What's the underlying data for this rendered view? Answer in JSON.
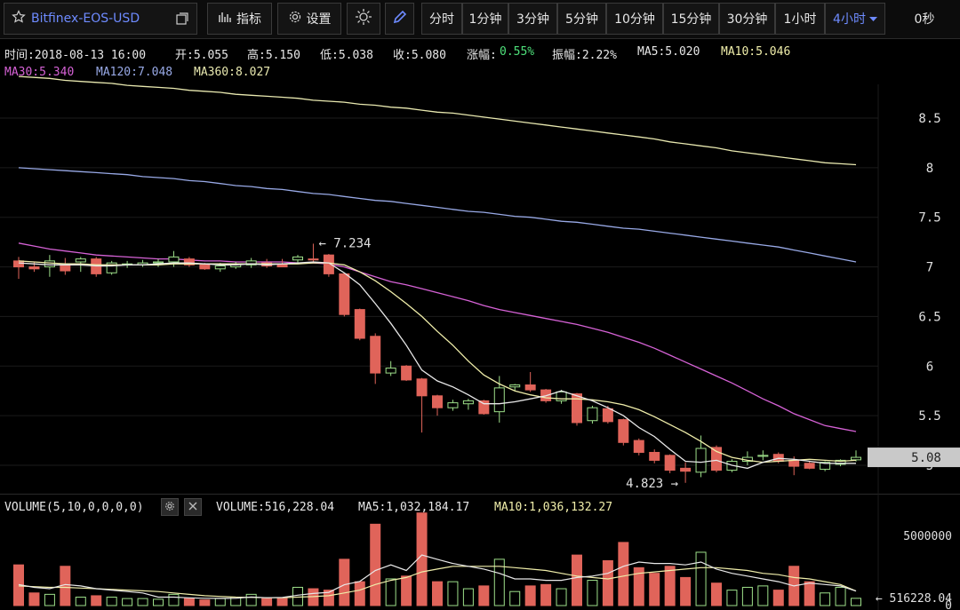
{
  "toolbar": {
    "symbol": "Bitfinex-EOS-USD",
    "indicators_label": "指标",
    "settings_label": "设置",
    "intervals": [
      "分时",
      "1分钟",
      "3分钟",
      "5分钟",
      "10分钟",
      "15分钟",
      "30分钟",
      "1小时",
      "4小时"
    ],
    "active_interval": "4小时",
    "countdown": "0秒"
  },
  "info": {
    "time": "时间:2018-08-13 16:00",
    "open": "开:5.055",
    "high": "高:5.150",
    "low": "低:5.038",
    "close": "收:5.080",
    "change_label": "涨幅:",
    "change_value": "0.55%",
    "amplitude": "振幅:2.22%",
    "ma5": "MA5:5.020",
    "ma10": "MA10:5.046",
    "ma30": "MA30:5.340",
    "ma120": "MA120:7.048",
    "ma360": "MA360:8.027"
  },
  "volume_info": {
    "title": "VOLUME(5,10,0,0,0,0)",
    "volume": "VOLUME:516,228.04",
    "ma5": "MA5:1,032,184.17",
    "ma10": "MA10:1,036,132.27"
  },
  "colors": {
    "up": "#9ee08a",
    "down": "#e0645a",
    "ma5": "#e8e8e8",
    "ma10": "#f0eeaa",
    "ma30": "#d662d6",
    "ma120": "#98a9e6",
    "ma360": "#e9e9b0",
    "accent": "#6e8bff",
    "change_up": "#4ee07a"
  },
  "chart_data": {
    "type": "candlestick",
    "price_axis_ticks": [
      "8.5",
      "8",
      "7.5",
      "7",
      "6.5",
      "6",
      "5.5",
      "5"
    ],
    "current_price_label": "5.08",
    "high_annotation": "7.234",
    "low_annotation": "4.823",
    "ylim": [
      4.95,
      8.85
    ],
    "candles": [
      {
        "o": 7.06,
        "h": 7.1,
        "l": 6.88,
        "c": 7.0
      },
      {
        "o": 7.0,
        "h": 7.05,
        "l": 6.95,
        "c": 6.98
      },
      {
        "o": 7.0,
        "h": 7.12,
        "l": 6.9,
        "c": 7.06
      },
      {
        "o": 7.02,
        "h": 7.09,
        "l": 6.92,
        "c": 6.96
      },
      {
        "o": 7.05,
        "h": 7.1,
        "l": 6.95,
        "c": 7.08
      },
      {
        "o": 7.08,
        "h": 7.1,
        "l": 6.9,
        "c": 6.93
      },
      {
        "o": 6.94,
        "h": 7.06,
        "l": 6.92,
        "c": 7.04
      },
      {
        "o": 7.02,
        "h": 7.06,
        "l": 6.99,
        "c": 7.03
      },
      {
        "o": 7.02,
        "h": 7.07,
        "l": 7.0,
        "c": 7.04
      },
      {
        "o": 7.04,
        "h": 7.08,
        "l": 7.0,
        "c": 7.05
      },
      {
        "o": 7.05,
        "h": 7.16,
        "l": 7.0,
        "c": 7.1
      },
      {
        "o": 7.08,
        "h": 7.1,
        "l": 7.0,
        "c": 7.02
      },
      {
        "o": 7.02,
        "h": 7.04,
        "l": 6.97,
        "c": 6.98
      },
      {
        "o": 6.98,
        "h": 7.04,
        "l": 6.95,
        "c": 7.01
      },
      {
        "o": 7.0,
        "h": 7.05,
        "l": 6.98,
        "c": 7.03
      },
      {
        "o": 7.02,
        "h": 7.09,
        "l": 6.99,
        "c": 7.06
      },
      {
        "o": 7.04,
        "h": 7.08,
        "l": 6.99,
        "c": 7.01
      },
      {
        "o": 7.03,
        "h": 7.08,
        "l": 7.0,
        "c": 7.0
      },
      {
        "o": 7.07,
        "h": 7.12,
        "l": 7.03,
        "c": 7.1
      },
      {
        "o": 7.08,
        "h": 7.234,
        "l": 7.05,
        "c": 7.07
      },
      {
        "o": 7.12,
        "h": 7.13,
        "l": 6.9,
        "c": 6.93
      },
      {
        "o": 6.93,
        "h": 6.94,
        "l": 6.5,
        "c": 6.52
      },
      {
        "o": 6.57,
        "h": 6.58,
        "l": 6.26,
        "c": 6.28
      },
      {
        "o": 6.3,
        "h": 6.33,
        "l": 5.82,
        "c": 5.93
      },
      {
        "o": 5.93,
        "h": 6.05,
        "l": 5.9,
        "c": 5.98
      },
      {
        "o": 6.0,
        "h": 6.01,
        "l": 5.85,
        "c": 5.86
      },
      {
        "o": 5.87,
        "h": 5.88,
        "l": 5.33,
        "c": 5.7
      },
      {
        "o": 5.7,
        "h": 5.71,
        "l": 5.5,
        "c": 5.58
      },
      {
        "o": 5.58,
        "h": 5.66,
        "l": 5.55,
        "c": 5.63
      },
      {
        "o": 5.62,
        "h": 5.67,
        "l": 5.56,
        "c": 5.65
      },
      {
        "o": 5.65,
        "h": 5.66,
        "l": 5.51,
        "c": 5.52
      },
      {
        "o": 5.54,
        "h": 5.9,
        "l": 5.43,
        "c": 5.78
      },
      {
        "o": 5.79,
        "h": 5.82,
        "l": 5.75,
        "c": 5.81
      },
      {
        "o": 5.81,
        "h": 5.94,
        "l": 5.74,
        "c": 5.76
      },
      {
        "o": 5.76,
        "h": 5.77,
        "l": 5.63,
        "c": 5.65
      },
      {
        "o": 5.65,
        "h": 5.76,
        "l": 5.62,
        "c": 5.74
      },
      {
        "o": 5.72,
        "h": 5.73,
        "l": 5.4,
        "c": 5.43
      },
      {
        "o": 5.45,
        "h": 5.6,
        "l": 5.42,
        "c": 5.58
      },
      {
        "o": 5.57,
        "h": 5.6,
        "l": 5.42,
        "c": 5.44
      },
      {
        "o": 5.46,
        "h": 5.47,
        "l": 5.2,
        "c": 5.23
      },
      {
        "o": 5.25,
        "h": 5.27,
        "l": 5.1,
        "c": 5.13
      },
      {
        "o": 5.13,
        "h": 5.16,
        "l": 5.02,
        "c": 5.05
      },
      {
        "o": 5.1,
        "h": 5.11,
        "l": 4.92,
        "c": 4.95
      },
      {
        "o": 4.97,
        "h": 5.03,
        "l": 4.823,
        "c": 4.94
      },
      {
        "o": 4.93,
        "h": 5.3,
        "l": 4.88,
        "c": 5.17
      },
      {
        "o": 5.18,
        "h": 5.2,
        "l": 4.93,
        "c": 4.95
      },
      {
        "o": 4.95,
        "h": 5.06,
        "l": 4.93,
        "c": 5.04
      },
      {
        "o": 5.04,
        "h": 5.14,
        "l": 5.0,
        "c": 5.08
      },
      {
        "o": 5.09,
        "h": 5.15,
        "l": 5.05,
        "c": 5.1
      },
      {
        "o": 5.11,
        "h": 5.13,
        "l": 5.02,
        "c": 5.04
      },
      {
        "o": 5.05,
        "h": 5.09,
        "l": 4.9,
        "c": 4.99
      },
      {
        "o": 5.02,
        "h": 5.04,
        "l": 4.96,
        "c": 4.97
      },
      {
        "o": 4.96,
        "h": 5.04,
        "l": 4.94,
        "c": 5.03
      },
      {
        "o": 5.01,
        "h": 5.06,
        "l": 4.99,
        "c": 5.05
      },
      {
        "o": 5.055,
        "h": 5.15,
        "l": 5.038,
        "c": 5.08
      }
    ],
    "ma5": [
      7.04,
      7.03,
      7.02,
      7.02,
      7.02,
      7.01,
      7.01,
      7.02,
      7.02,
      7.03,
      7.04,
      7.04,
      7.03,
      7.02,
      7.02,
      7.03,
      7.02,
      7.03,
      7.04,
      7.05,
      7.04,
      6.94,
      6.82,
      6.63,
      6.43,
      6.21,
      5.96,
      5.85,
      5.79,
      5.71,
      5.62,
      5.62,
      5.64,
      5.67,
      5.7,
      5.75,
      5.7,
      5.65,
      5.58,
      5.5,
      5.38,
      5.29,
      5.16,
      5.04,
      5.03,
      5.05,
      5.0,
      4.97,
      5.03,
      5.07,
      5.06,
      5.04,
      5.02,
      5.02,
      5.02
    ],
    "ma10": [
      7.06,
      7.05,
      7.04,
      7.03,
      7.03,
      7.02,
      7.02,
      7.02,
      7.02,
      7.02,
      7.03,
      7.03,
      7.03,
      7.03,
      7.03,
      7.03,
      7.03,
      7.03,
      7.03,
      7.04,
      7.04,
      7.02,
      6.95,
      6.86,
      6.75,
      6.63,
      6.5,
      6.35,
      6.21,
      6.05,
      5.91,
      5.82,
      5.75,
      5.71,
      5.68,
      5.67,
      5.67,
      5.66,
      5.64,
      5.61,
      5.56,
      5.49,
      5.41,
      5.33,
      5.24,
      5.14,
      5.08,
      5.05,
      5.03,
      5.04,
      5.05,
      5.06,
      5.05,
      5.04,
      5.05
    ],
    "ma30": [
      7.24,
      7.21,
      7.18,
      7.16,
      7.14,
      7.12,
      7.11,
      7.1,
      7.09,
      7.08,
      7.08,
      7.07,
      7.06,
      7.06,
      7.05,
      7.05,
      7.05,
      7.05,
      7.04,
      7.04,
      7.03,
      7.0,
      6.95,
      6.9,
      6.85,
      6.82,
      6.78,
      6.74,
      6.7,
      6.66,
      6.61,
      6.57,
      6.54,
      6.51,
      6.48,
      6.45,
      6.42,
      6.38,
      6.34,
      6.29,
      6.24,
      6.18,
      6.11,
      6.04,
      5.97,
      5.9,
      5.83,
      5.75,
      5.67,
      5.6,
      5.52,
      5.46,
      5.4,
      5.37,
      5.34
    ],
    "ma120": [
      8.0,
      7.99,
      7.98,
      7.97,
      7.96,
      7.95,
      7.94,
      7.93,
      7.91,
      7.9,
      7.89,
      7.87,
      7.86,
      7.84,
      7.82,
      7.81,
      7.79,
      7.78,
      7.76,
      7.74,
      7.73,
      7.71,
      7.69,
      7.67,
      7.66,
      7.64,
      7.62,
      7.6,
      7.58,
      7.56,
      7.55,
      7.53,
      7.51,
      7.5,
      7.48,
      7.46,
      7.45,
      7.43,
      7.41,
      7.39,
      7.38,
      7.36,
      7.34,
      7.32,
      7.3,
      7.28,
      7.26,
      7.24,
      7.22,
      7.2,
      7.17,
      7.14,
      7.11,
      7.08,
      7.05
    ],
    "ma360": [
      8.92,
      8.91,
      8.9,
      8.88,
      8.87,
      8.86,
      8.85,
      8.83,
      8.82,
      8.81,
      8.8,
      8.78,
      8.77,
      8.76,
      8.74,
      8.73,
      8.72,
      8.71,
      8.7,
      8.68,
      8.67,
      8.66,
      8.64,
      8.63,
      8.61,
      8.6,
      8.58,
      8.56,
      8.55,
      8.53,
      8.51,
      8.49,
      8.47,
      8.45,
      8.43,
      8.41,
      8.39,
      8.37,
      8.35,
      8.33,
      8.31,
      8.29,
      8.26,
      8.24,
      8.22,
      8.2,
      8.17,
      8.15,
      8.13,
      8.11,
      8.09,
      8.07,
      8.05,
      8.04,
      8.03
    ],
    "volume_axis_ticks": [
      "5000000",
      "0"
    ],
    "volume_current_label": "516228.04",
    "volume_ylim": [
      0,
      6500000
    ],
    "volumes": [
      2900000,
      900000,
      800000,
      2800000,
      600000,
      700000,
      600000,
      500000,
      500000,
      450000,
      800000,
      500000,
      400000,
      500000,
      600000,
      800000,
      500000,
      500000,
      1300000,
      1200000,
      1100000,
      3300000,
      1700000,
      5800000,
      1900000,
      2100000,
      6600000,
      1700000,
      1700000,
      1200000,
      1400000,
      3300000,
      1000000,
      1400000,
      1500000,
      1200000,
      3600000,
      1800000,
      3200000,
      4500000,
      2700000,
      2300000,
      2800000,
      2000000,
      3800000,
      1600000,
      1100000,
      1300000,
      1400000,
      1100000,
      2800000,
      1700000,
      900000,
      1300000,
      516228
    ],
    "vol_ma5": [
      1500000,
      1300000,
      1200000,
      1500000,
      1400000,
      1200000,
      1100000,
      1000000,
      900000,
      600000,
      600000,
      550000,
      520000,
      510000,
      520000,
      610000,
      560000,
      580000,
      740000,
      860000,
      940000,
      1480000,
      1720000,
      2500000,
      2900000,
      2500000,
      3600000,
      3300000,
      3000000,
      2800000,
      2600000,
      2300000,
      1900000,
      1900000,
      1800000,
      1800000,
      2000000,
      2100000,
      2300000,
      2800000,
      3100000,
      3000000,
      3000000,
      2900000,
      3100000,
      2600000,
      2300000,
      2100000,
      1900000,
      1700000,
      1400000,
      1600000,
      1500000,
      1400000,
      1032184
    ],
    "vol_ma10": [
      1400000,
      1350000,
      1300000,
      1300000,
      1250000,
      1200000,
      1150000,
      1100000,
      1050000,
      1000000,
      900000,
      800000,
      700000,
      650000,
      600000,
      580000,
      560000,
      560000,
      600000,
      640000,
      700000,
      900000,
      1100000,
      1500000,
      1800000,
      2000000,
      2400000,
      2600000,
      2800000,
      2800000,
      2800000,
      2800000,
      2700000,
      2600000,
      2500000,
      2300000,
      2100000,
      2000000,
      1900000,
      2100000,
      2300000,
      2400000,
      2500000,
      2600000,
      2700000,
      2700000,
      2600000,
      2500000,
      2300000,
      2200000,
      2000000,
      1900000,
      1700000,
      1500000,
      1036132
    ]
  }
}
